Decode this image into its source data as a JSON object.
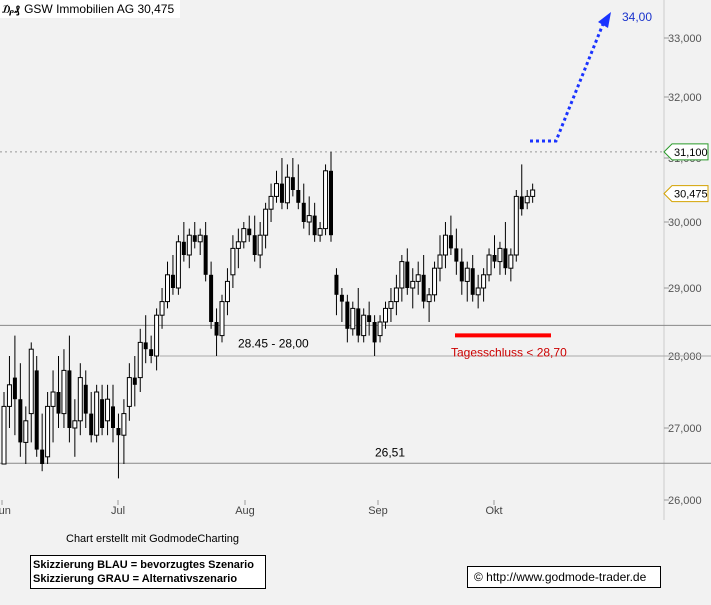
{
  "header": {
    "icon": "candlestick-chart-icon",
    "title": "GSW Immobilien AG 30,475"
  },
  "footer": {
    "credit": "Chart erstellt mit GodmodeCharting",
    "legend_blue": "Skizzierung BLAU = bevorzugtes Szenario",
    "legend_grey": "Skizzierung GRAU = Alternativszenario",
    "url": "© http://www.godmode-trader.de"
  },
  "colors": {
    "background": "#f2f2f2",
    "candle": "#000000",
    "projection": "#1a33ff",
    "support_bar": "#ff0000",
    "support_text": "#cc0000",
    "hline": "#888888"
  },
  "chart_data": {
    "type": "candlestick",
    "title": "GSW Immobilien AG 30,475",
    "y_ticks": [
      {
        "value": 26000,
        "label": "26,000"
      },
      {
        "value": 27000,
        "label": "27,000"
      },
      {
        "value": 28000,
        "label": "28,000"
      },
      {
        "value": 29000,
        "label": "29,000"
      },
      {
        "value": 30000,
        "label": "30,000"
      },
      {
        "value": 31000,
        "label": "31,000"
      },
      {
        "value": 32000,
        "label": "32,000"
      },
      {
        "value": 33000,
        "label": "33,000"
      }
    ],
    "x_ticks": [
      "Jun",
      "Jul",
      "Aug",
      "Sep",
      "Okt"
    ],
    "last_price": {
      "value": 30.475,
      "label": "30,475"
    },
    "resistance": {
      "value": 31.1,
      "label": "31,100"
    },
    "levels": [
      {
        "value": 28.45,
        "label": "28.45 - 28,00"
      },
      {
        "value": 28.0,
        "label": ""
      },
      {
        "value": 26.51,
        "label": "26,51"
      }
    ],
    "support_mark": {
      "value": 28.7,
      "label": "Tagesschluss < 28,70"
    },
    "target": {
      "value": 34.0,
      "label": "34,00"
    },
    "candles": [
      [
        26.5,
        27.5,
        26.5,
        27.3
      ],
      [
        27.3,
        28.0,
        27.0,
        27.6
      ],
      [
        27.7,
        28.3,
        26.9,
        27.4
      ],
      [
        27.4,
        27.9,
        26.6,
        26.8
      ],
      [
        26.8,
        27.3,
        26.5,
        27.1
      ],
      [
        27.2,
        28.2,
        26.8,
        28.1
      ],
      [
        27.8,
        28.0,
        26.6,
        26.7
      ],
      [
        26.7,
        27.2,
        26.4,
        26.5
      ],
      [
        26.6,
        27.5,
        26.5,
        27.3
      ],
      [
        27.3,
        27.8,
        26.8,
        27.5
      ],
      [
        27.5,
        28.0,
        27.0,
        27.2
      ],
      [
        27.2,
        28.1,
        27.0,
        27.8
      ],
      [
        27.8,
        28.3,
        26.8,
        27.0
      ],
      [
        27.0,
        27.4,
        26.6,
        27.1
      ],
      [
        27.1,
        27.9,
        26.9,
        27.7
      ],
      [
        27.6,
        27.8,
        27.0,
        27.2
      ],
      [
        27.2,
        27.5,
        26.8,
        26.9
      ],
      [
        26.9,
        27.6,
        26.8,
        27.5
      ],
      [
        27.4,
        27.6,
        26.9,
        27.0
      ],
      [
        27.1,
        27.6,
        26.9,
        27.4
      ],
      [
        27.3,
        27.6,
        26.8,
        27.0
      ],
      [
        27.0,
        27.2,
        26.3,
        26.9
      ],
      [
        26.9,
        27.4,
        26.5,
        27.2
      ],
      [
        27.3,
        27.9,
        27.1,
        27.7
      ],
      [
        27.7,
        28.0,
        27.3,
        27.6
      ],
      [
        27.7,
        28.4,
        27.5,
        28.2
      ],
      [
        28.2,
        28.6,
        27.9,
        28.1
      ],
      [
        28.1,
        28.3,
        27.9,
        28.0
      ],
      [
        28.0,
        28.7,
        27.8,
        28.6
      ],
      [
        28.6,
        29.0,
        28.4,
        28.8
      ],
      [
        28.8,
        29.4,
        28.7,
        29.2
      ],
      [
        29.2,
        29.5,
        28.9,
        29.0
      ],
      [
        29.0,
        29.8,
        28.9,
        29.7
      ],
      [
        29.7,
        30.0,
        29.4,
        29.5
      ],
      [
        29.5,
        29.9,
        29.3,
        29.8
      ],
      [
        29.8,
        30.0,
        29.6,
        29.7
      ],
      [
        29.7,
        29.9,
        29.5,
        29.8
      ],
      [
        29.8,
        30.0,
        29.1,
        29.2
      ],
      [
        29.2,
        29.4,
        28.4,
        28.5
      ],
      [
        28.5,
        28.7,
        28.0,
        28.3
      ],
      [
        28.3,
        28.9,
        28.2,
        28.8
      ],
      [
        28.8,
        29.3,
        28.6,
        29.1
      ],
      [
        29.2,
        29.8,
        29.0,
        29.6
      ],
      [
        29.6,
        29.9,
        29.3,
        29.7
      ],
      [
        29.7,
        30.0,
        29.6,
        29.9
      ],
      [
        29.9,
        30.1,
        29.7,
        29.8
      ],
      [
        29.8,
        30.1,
        29.4,
        29.5
      ],
      [
        29.5,
        30.0,
        29.3,
        29.8
      ],
      [
        29.8,
        30.3,
        29.6,
        30.2
      ],
      [
        30.2,
        30.6,
        30.0,
        30.4
      ],
      [
        30.4,
        30.8,
        30.3,
        30.6
      ],
      [
        30.6,
        31.0,
        30.2,
        30.3
      ],
      [
        30.3,
        30.9,
        30.2,
        30.7
      ],
      [
        30.7,
        31.0,
        30.4,
        30.5
      ],
      [
        30.5,
        30.9,
        30.2,
        30.3
      ],
      [
        30.3,
        30.6,
        29.9,
        30.0
      ],
      [
        30.0,
        30.4,
        29.8,
        30.1
      ],
      [
        30.1,
        30.3,
        29.7,
        29.8
      ],
      [
        29.8,
        30.0,
        29.7,
        29.9
      ],
      [
        29.9,
        30.9,
        29.8,
        30.8
      ],
      [
        30.8,
        31.1,
        29.7,
        29.8
      ],
      [
        29.2,
        29.3,
        28.6,
        28.9
      ],
      [
        28.9,
        29.0,
        28.5,
        28.8
      ],
      [
        28.8,
        28.9,
        28.2,
        28.4
      ],
      [
        28.4,
        28.8,
        28.3,
        28.7
      ],
      [
        28.7,
        29.0,
        28.2,
        28.3
      ],
      [
        28.3,
        28.7,
        28.2,
        28.6
      ],
      [
        28.6,
        28.8,
        28.3,
        28.5
      ],
      [
        28.5,
        28.6,
        28.0,
        28.2
      ],
      [
        28.3,
        28.6,
        28.2,
        28.5
      ],
      [
        28.5,
        28.8,
        28.4,
        28.7
      ],
      [
        28.7,
        29.0,
        28.5,
        28.8
      ],
      [
        28.8,
        29.2,
        28.6,
        29.0
      ],
      [
        29.0,
        29.5,
        28.8,
        29.4
      ],
      [
        29.4,
        29.6,
        28.9,
        29.0
      ],
      [
        29.0,
        29.3,
        28.7,
        29.1
      ],
      [
        29.1,
        29.4,
        28.9,
        29.2
      ],
      [
        29.2,
        29.5,
        28.7,
        28.8
      ],
      [
        28.8,
        29.0,
        28.5,
        28.9
      ],
      [
        28.9,
        29.4,
        28.8,
        29.3
      ],
      [
        29.3,
        29.8,
        29.1,
        29.5
      ],
      [
        29.5,
        30.0,
        29.3,
        29.8
      ],
      [
        29.8,
        30.1,
        29.5,
        29.6
      ],
      [
        29.6,
        29.9,
        29.2,
        29.4
      ],
      [
        29.4,
        29.6,
        28.9,
        29.1
      ],
      [
        29.1,
        29.4,
        28.8,
        29.3
      ],
      [
        29.3,
        29.5,
        28.8,
        28.9
      ],
      [
        28.9,
        29.2,
        28.7,
        29.0
      ],
      [
        29.0,
        29.3,
        28.8,
        29.2
      ],
      [
        29.2,
        29.6,
        29.1,
        29.5
      ],
      [
        29.5,
        29.8,
        29.3,
        29.4
      ],
      [
        29.4,
        29.7,
        29.2,
        29.6
      ],
      [
        29.6,
        30.0,
        29.2,
        29.3
      ],
      [
        29.3,
        29.6,
        29.1,
        29.5
      ],
      [
        29.5,
        30.5,
        29.4,
        30.4
      ],
      [
        30.4,
        30.9,
        30.1,
        30.2
      ],
      [
        30.3,
        30.5,
        30.2,
        30.4
      ],
      [
        30.4,
        30.6,
        30.3,
        30.5
      ]
    ]
  }
}
